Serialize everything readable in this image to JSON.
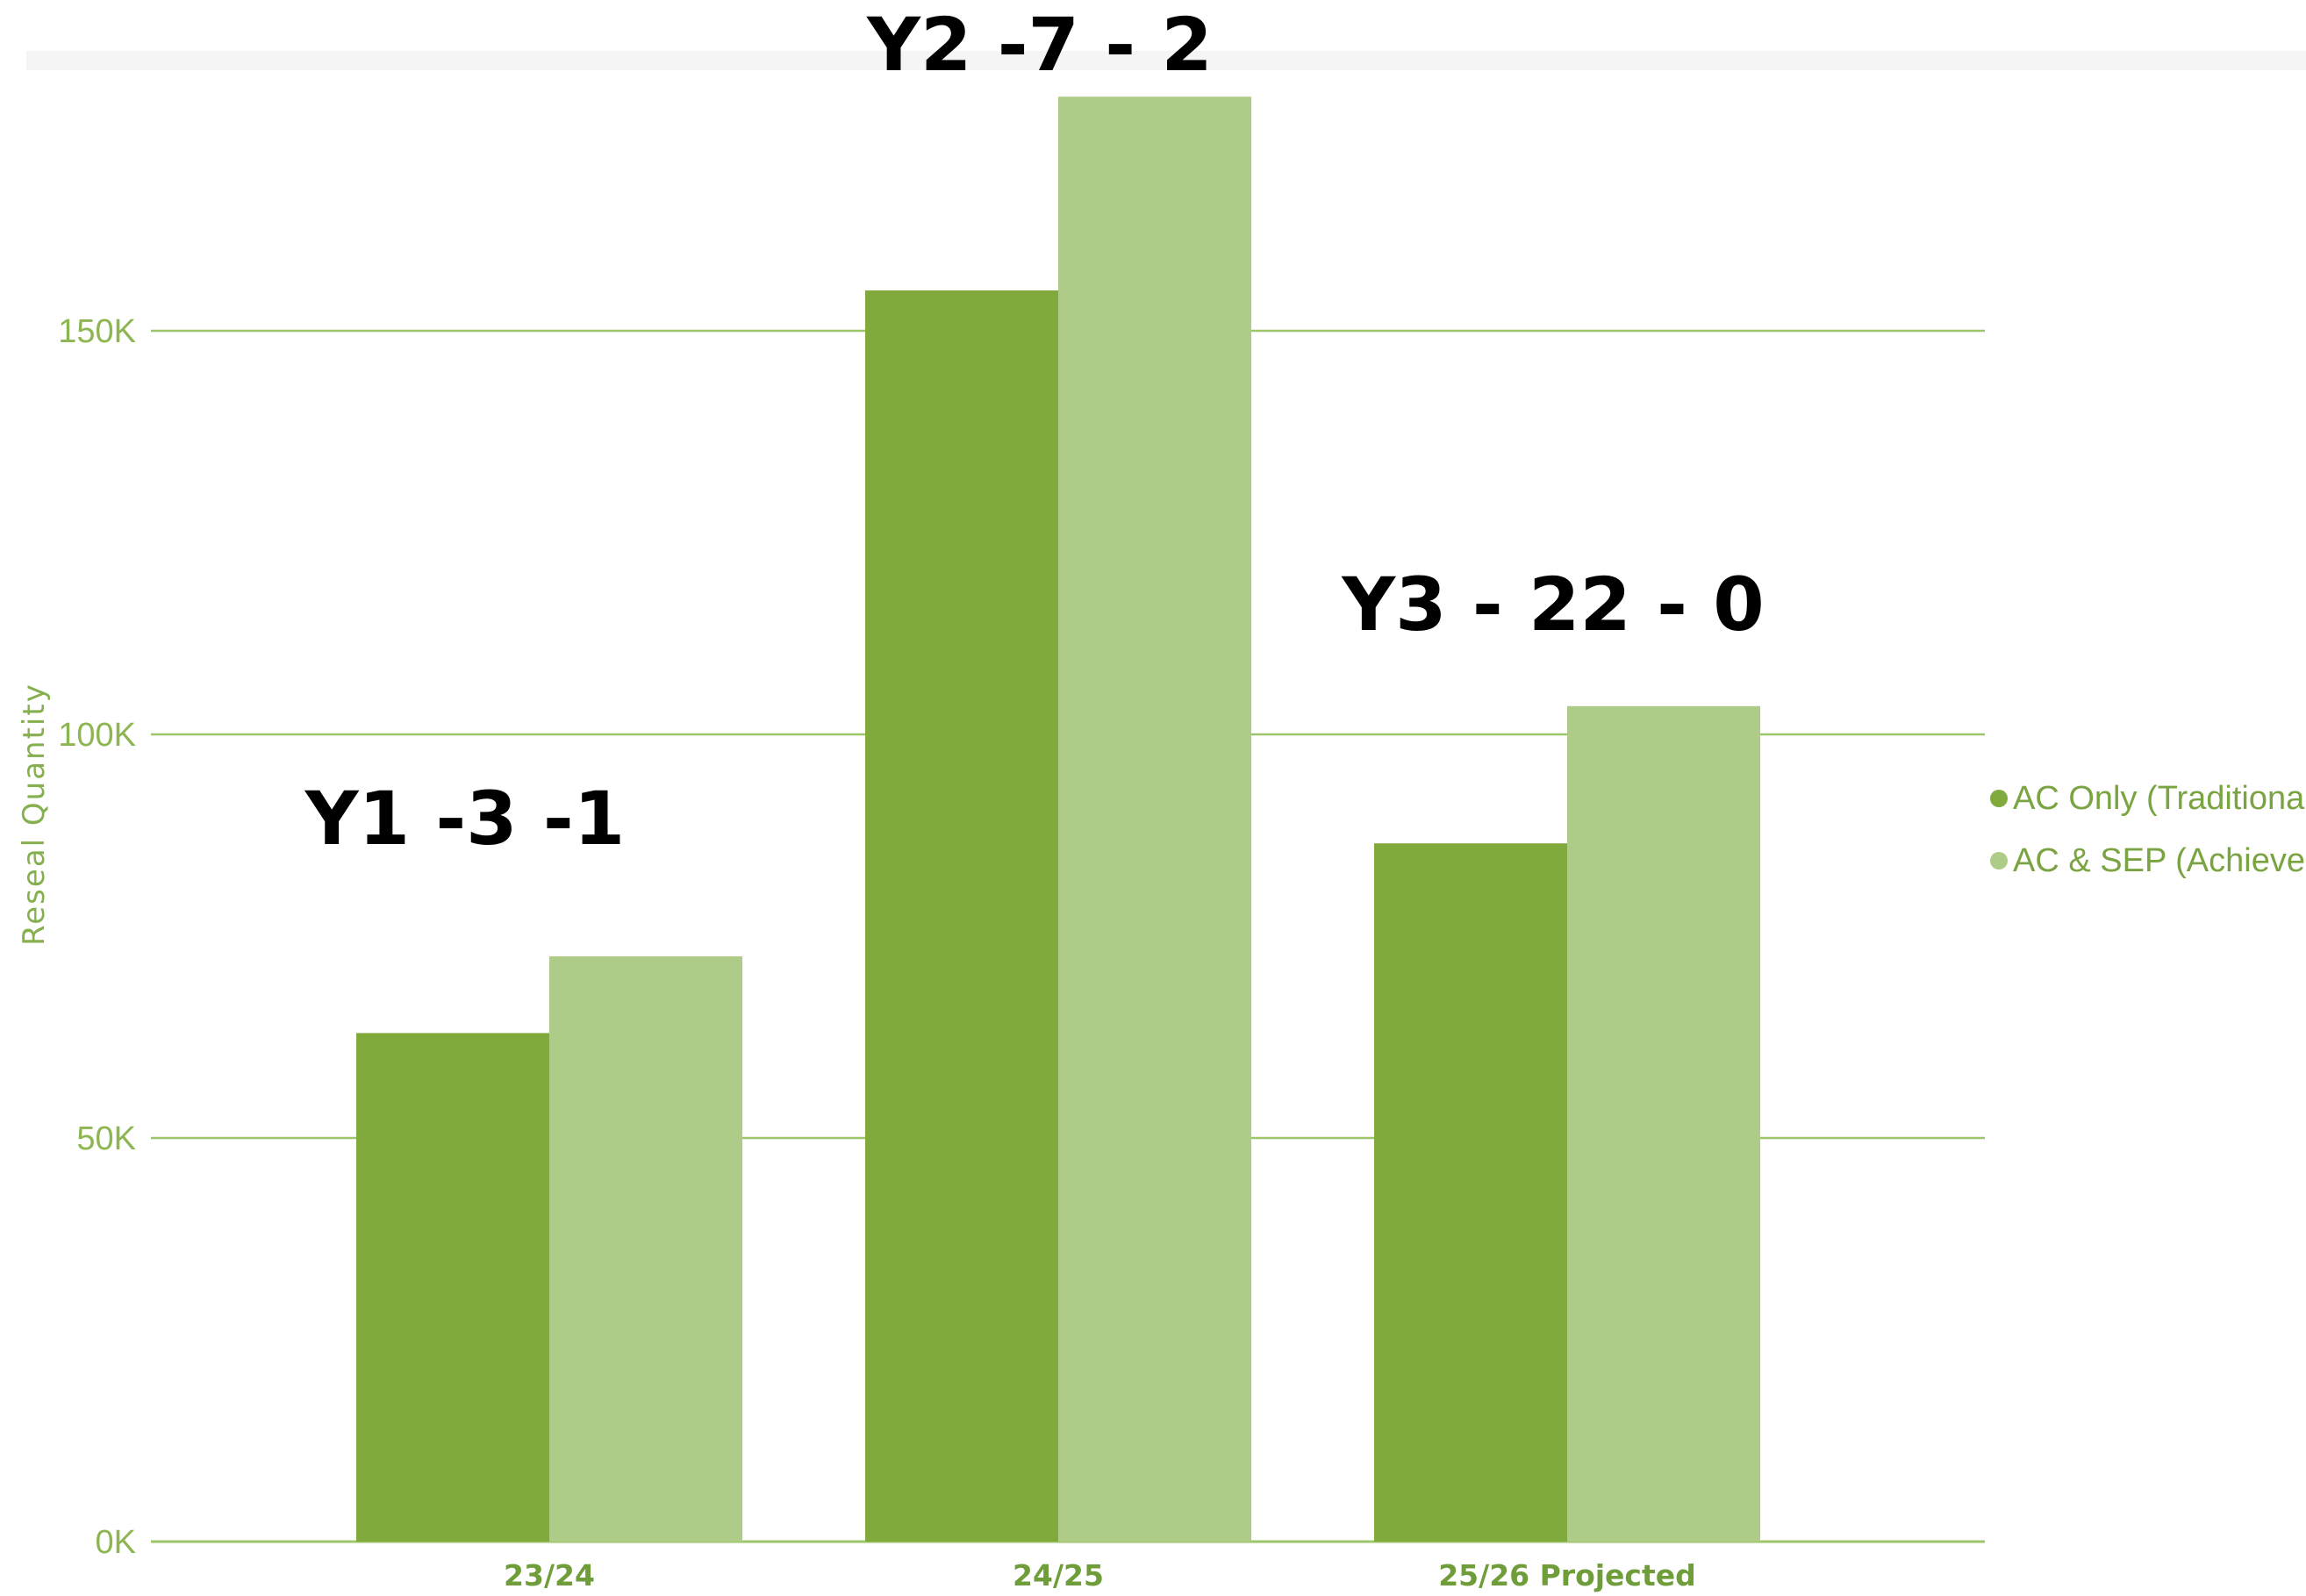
{
  "chart_data": {
    "type": "bar",
    "categories": [
      "23/24",
      "24/25",
      "25/26 Projected"
    ],
    "series": [
      {
        "name": "AC Only (Traditional)",
        "values": [
          63000,
          155000,
          86500
        ],
        "color": "#80aa3c"
      },
      {
        "name": "AC & SEP (Achieved)",
        "values": [
          72500,
          179000,
          103500
        ],
        "color": "#aecb88"
      }
    ],
    "ylabel": "Reseal Quantity",
    "ylim": [
      0,
      180000
    ],
    "yticks": [
      0,
      50000,
      100000,
      150000
    ],
    "ytick_labels": [
      "0K",
      "50K",
      "100K",
      "150K"
    ],
    "grid": true,
    "legend_position": "right",
    "annotations": [
      "Y1 -3 -1",
      "Y2 -7 - 2",
      "Y3 - 22 - 0"
    ]
  }
}
